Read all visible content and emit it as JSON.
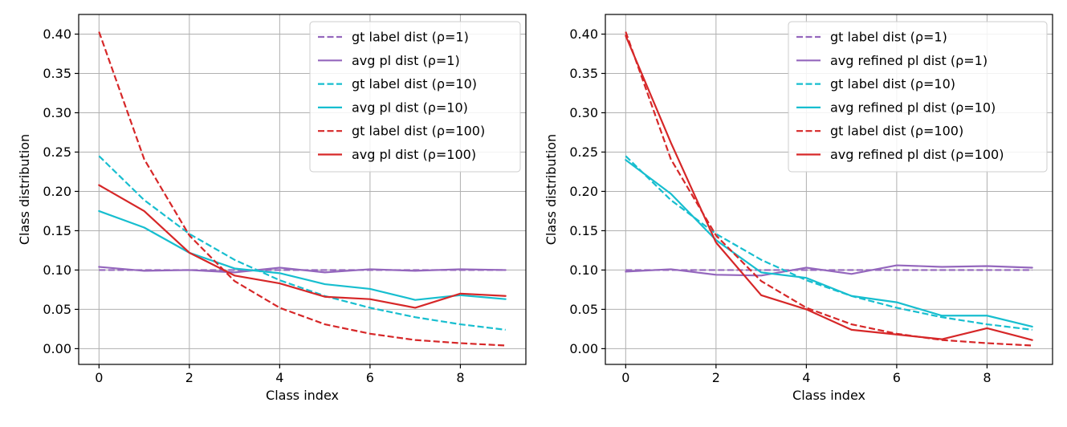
{
  "colors": {
    "purple": "#9467bd",
    "cyan": "#17becf",
    "red": "#d62728"
  },
  "chart_data": [
    {
      "type": "line",
      "title": "",
      "xlabel": "Class index",
      "ylabel": "Class distribution",
      "xlim": [
        -0.45,
        9.45
      ],
      "ylim": [
        -0.02,
        0.425
      ],
      "xticks": [
        0,
        2,
        4,
        6,
        8
      ],
      "yticks": [
        0.0,
        0.05,
        0.1,
        0.15,
        0.2,
        0.25,
        0.3,
        0.35,
        0.4
      ],
      "ytick_labels": [
        "0.00",
        "0.05",
        "0.10",
        "0.15",
        "0.20",
        "0.25",
        "0.30",
        "0.35",
        "0.40"
      ],
      "grid": true,
      "legend_position": "top-right",
      "x": [
        0,
        1,
        2,
        3,
        4,
        5,
        6,
        7,
        8,
        9
      ],
      "series": [
        {
          "name": "gt label dist (ρ=1)",
          "color": "#9467bd",
          "style": "dashed",
          "values": [
            0.1,
            0.1,
            0.1,
            0.1,
            0.1,
            0.1,
            0.1,
            0.1,
            0.1,
            0.1
          ]
        },
        {
          "name": "avg pl dist (ρ=1)",
          "color": "#9467bd",
          "style": "solid",
          "values": [
            0.104,
            0.099,
            0.1,
            0.097,
            0.103,
            0.097,
            0.101,
            0.099,
            0.101,
            0.1
          ]
        },
        {
          "name": "gt label dist (ρ=10)",
          "color": "#17becf",
          "style": "dashed",
          "values": [
            0.245,
            0.189,
            0.146,
            0.113,
            0.087,
            0.067,
            0.052,
            0.04,
            0.031,
            0.024
          ]
        },
        {
          "name": "avg pl dist (ρ=10)",
          "color": "#17becf",
          "style": "solid",
          "values": [
            0.175,
            0.154,
            0.122,
            0.102,
            0.096,
            0.082,
            0.076,
            0.062,
            0.068,
            0.063
          ]
        },
        {
          "name": "gt label dist (ρ=100)",
          "color": "#d62728",
          "style": "dashed",
          "values": [
            0.403,
            0.241,
            0.144,
            0.086,
            0.052,
            0.031,
            0.019,
            0.011,
            0.007,
            0.004
          ]
        },
        {
          "name": "avg pl dist (ρ=100)",
          "color": "#d62728",
          "style": "solid",
          "values": [
            0.208,
            0.175,
            0.122,
            0.093,
            0.083,
            0.066,
            0.063,
            0.052,
            0.07,
            0.067
          ]
        }
      ]
    },
    {
      "type": "line",
      "title": "",
      "xlabel": "Class index",
      "ylabel": "Class distribution",
      "xlim": [
        -0.45,
        9.45
      ],
      "ylim": [
        -0.02,
        0.425
      ],
      "xticks": [
        0,
        2,
        4,
        6,
        8
      ],
      "yticks": [
        0.0,
        0.05,
        0.1,
        0.15,
        0.2,
        0.25,
        0.3,
        0.35,
        0.4
      ],
      "ytick_labels": [
        "0.00",
        "0.05",
        "0.10",
        "0.15",
        "0.20",
        "0.25",
        "0.30",
        "0.35",
        "0.40"
      ],
      "grid": true,
      "legend_position": "top-right",
      "x": [
        0,
        1,
        2,
        3,
        4,
        5,
        6,
        7,
        8,
        9
      ],
      "series": [
        {
          "name": "gt label dist (ρ=1)",
          "color": "#9467bd",
          "style": "dashed",
          "values": [
            0.1,
            0.1,
            0.1,
            0.1,
            0.1,
            0.1,
            0.1,
            0.1,
            0.1,
            0.1
          ]
        },
        {
          "name": "avg refined pl dist (ρ=1)",
          "color": "#9467bd",
          "style": "solid",
          "values": [
            0.098,
            0.101,
            0.094,
            0.093,
            0.103,
            0.095,
            0.106,
            0.104,
            0.105,
            0.103
          ]
        },
        {
          "name": "gt label dist (ρ=10)",
          "color": "#17becf",
          "style": "dashed",
          "values": [
            0.245,
            0.189,
            0.146,
            0.113,
            0.087,
            0.067,
            0.052,
            0.04,
            0.031,
            0.024
          ]
        },
        {
          "name": "avg refined pl dist (ρ=10)",
          "color": "#17becf",
          "style": "solid",
          "values": [
            0.24,
            0.197,
            0.138,
            0.097,
            0.09,
            0.067,
            0.059,
            0.042,
            0.042,
            0.028
          ]
        },
        {
          "name": "gt label dist (ρ=100)",
          "color": "#d62728",
          "style": "dashed",
          "values": [
            0.403,
            0.241,
            0.144,
            0.086,
            0.052,
            0.031,
            0.019,
            0.011,
            0.007,
            0.004
          ]
        },
        {
          "name": "avg refined pl dist (ρ=100)",
          "color": "#d62728",
          "style": "solid",
          "values": [
            0.398,
            0.262,
            0.135,
            0.068,
            0.05,
            0.024,
            0.018,
            0.012,
            0.026,
            0.011
          ]
        }
      ]
    }
  ]
}
